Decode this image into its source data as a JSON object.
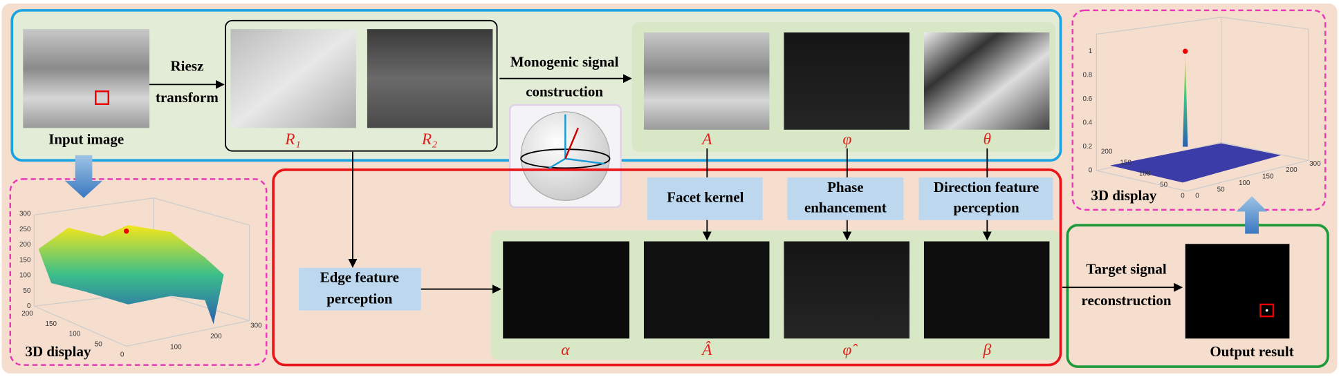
{
  "input": {
    "label": "Input image"
  },
  "riesz": {
    "lines": [
      "Riesz",
      "transform"
    ],
    "outputs": [
      "R₁",
      "R₂"
    ]
  },
  "monogenic": {
    "lines": [
      "Monogenic signal",
      "construction"
    ],
    "outputs": [
      "A",
      "φ",
      "θ"
    ]
  },
  "operations": [
    {
      "lines": [
        "Facet kernel"
      ]
    },
    {
      "lines": [
        "Phase",
        "enhancement"
      ]
    },
    {
      "lines": [
        "Direction feature",
        "perception"
      ]
    },
    {
      "lines": [
        "Edge feature",
        "perception"
      ]
    }
  ],
  "features": [
    "α",
    "Â",
    "φ̂",
    "β"
  ],
  "reconstruction": {
    "lines": [
      "Target signal",
      "reconstruction"
    ],
    "output": "Output result"
  },
  "plots": [
    {
      "label": "3D display",
      "z_ticks": [
        0,
        50,
        100,
        150,
        200,
        250,
        300
      ],
      "left_ticks": [
        200,
        150,
        100,
        50,
        0
      ],
      "right_ticks": [
        100,
        200,
        300
      ]
    },
    {
      "label": "3D display",
      "z_ticks": [
        0,
        0.2,
        0.4,
        0.6,
        0.8,
        1
      ],
      "left_ticks": [
        200,
        150,
        100,
        50,
        0
      ],
      "right_ticks": [
        0,
        50,
        100,
        150,
        200,
        300
      ]
    }
  ]
}
